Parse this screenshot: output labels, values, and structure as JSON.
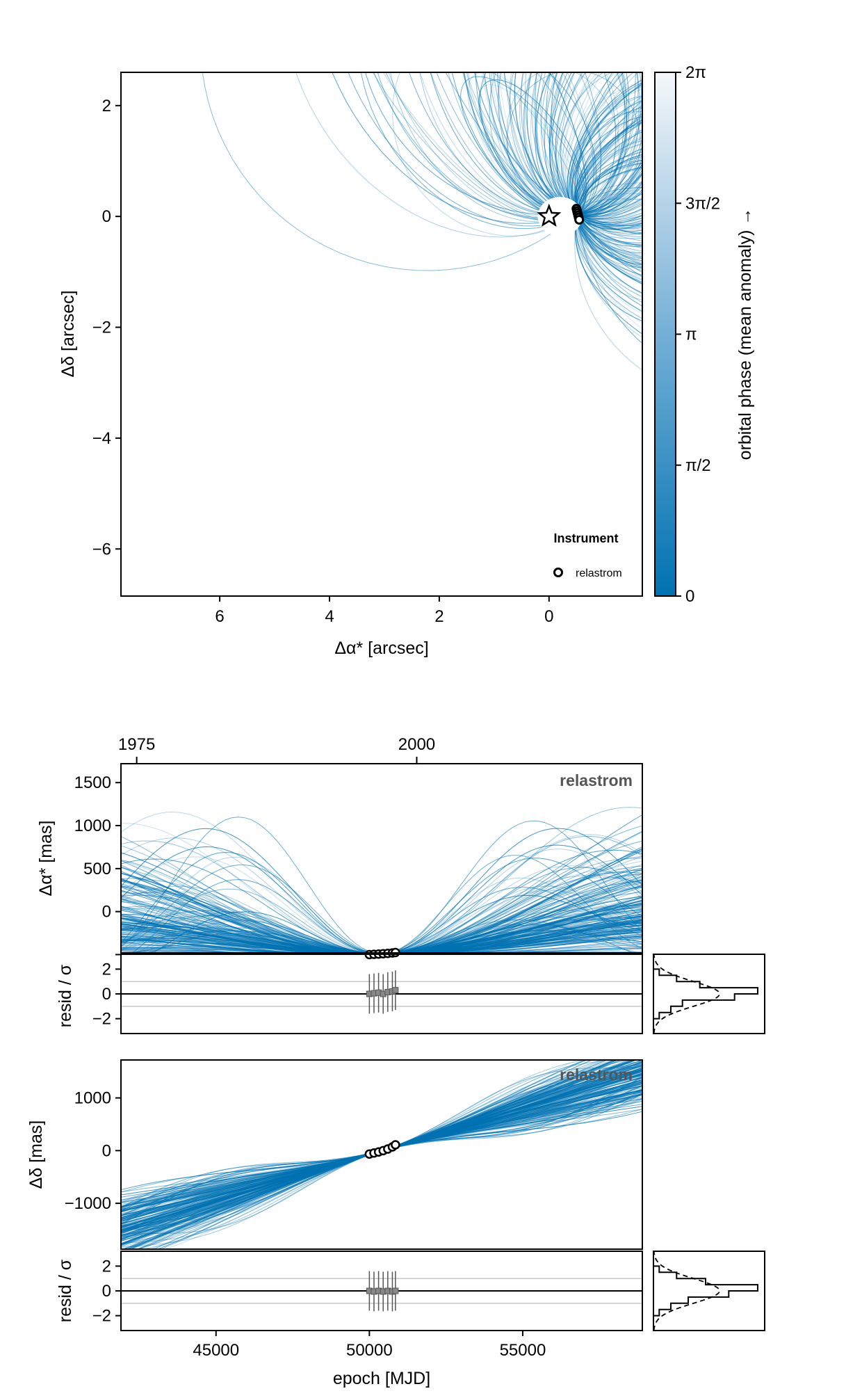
{
  "colors": {
    "orbit": "#0072B2",
    "frame": "#000000",
    "ref_line": "#c8c8c8",
    "marker_fill": "#ffffff",
    "error_bar": "#555555",
    "resid_marker": "#888888"
  },
  "chart_data": [
    {
      "id": "sky_orbit",
      "type": "line",
      "xlabel": "Δα* [arcsec]",
      "ylabel": "Δδ [arcsec]",
      "xlim": [
        7.8,
        -1.7
      ],
      "ylim": [
        -6.85,
        2.6
      ],
      "xticks": [
        {
          "v": 6,
          "label": "6"
        },
        {
          "v": 4,
          "label": "4"
        },
        {
          "v": 2,
          "label": "2"
        },
        {
          "v": 0,
          "label": "0"
        }
      ],
      "yticks": [
        {
          "v": 2,
          "label": "2"
        },
        {
          "v": 0,
          "label": "0"
        },
        {
          "v": -2,
          "label": "−2"
        },
        {
          "v": -4,
          "label": "−4"
        },
        {
          "v": -6,
          "label": "−6"
        }
      ],
      "star_marker": [
        0,
        0
      ],
      "legend": {
        "title": "Instrument",
        "label": "relastrom",
        "position": "bottom-right"
      },
      "observations": [
        [
          -0.5,
          0.14
        ],
        [
          -0.51,
          0.1
        ],
        [
          -0.52,
          0.06
        ],
        [
          -0.53,
          0.02
        ],
        [
          -0.54,
          -0.02
        ],
        [
          -0.55,
          -0.06
        ]
      ],
      "grid": false
    },
    {
      "id": "phase_colorbar",
      "type": "heatmap",
      "label": "orbital phase (mean anomaly) →",
      "range": [
        0,
        6.2832
      ],
      "ticks": [
        {
          "v": 0,
          "label": "0"
        },
        {
          "v": 1.5708,
          "label": "π/2"
        },
        {
          "v": 3.1416,
          "label": "π"
        },
        {
          "v": 4.7124,
          "label": "3π/2"
        },
        {
          "v": 6.2832,
          "label": "2π"
        }
      ]
    },
    {
      "id": "ra_vs_time",
      "type": "line",
      "instrument": "relastrom",
      "ylabel": "Δα* [mas]",
      "xlim": [
        41900,
        58900
      ],
      "ylim": [
        -480,
        1720
      ],
      "yticks": [
        {
          "v": 1500,
          "label": "1500"
        },
        {
          "v": 1000,
          "label": "1000"
        },
        {
          "v": 500,
          "label": "500"
        },
        {
          "v": 0,
          "label": "0"
        }
      ],
      "top_axis_ticks": [
        {
          "mjd": 42413,
          "label": "1975"
        },
        {
          "mjd": 51544,
          "label": "2000"
        }
      ],
      "observations": [
        {
          "mjd": 50000,
          "y": -500
        },
        {
          "mjd": 50150,
          "y": -497
        },
        {
          "mjd": 50300,
          "y": -494
        },
        {
          "mjd": 50450,
          "y": -490
        },
        {
          "mjd": 50600,
          "y": -486
        },
        {
          "mjd": 50750,
          "y": -481
        },
        {
          "mjd": 50850,
          "y": -476
        }
      ],
      "grid": false
    },
    {
      "id": "ra_resid",
      "type": "scatter",
      "ylabel": "resid / σ",
      "ylim": [
        -3.2,
        3.2
      ],
      "yticks": [
        {
          "v": 2,
          "label": "2"
        },
        {
          "v": 0,
          "label": "0"
        },
        {
          "v": -2,
          "label": "−2"
        }
      ],
      "ref_lines": [
        1,
        -1
      ],
      "residuals": [
        {
          "mjd": 50000,
          "r": 0.0,
          "err": 1.6
        },
        {
          "mjd": 50150,
          "r": 0.05,
          "err": 1.6
        },
        {
          "mjd": 50300,
          "r": 0.1,
          "err": 1.6
        },
        {
          "mjd": 50450,
          "r": 0.0,
          "err": 1.6
        },
        {
          "mjd": 50600,
          "r": 0.15,
          "err": 1.6
        },
        {
          "mjd": 50750,
          "r": 0.2,
          "err": 1.6
        },
        {
          "mjd": 50850,
          "r": 0.3,
          "err": 1.6
        }
      ]
    },
    {
      "id": "ra_resid_hist",
      "type": "bar",
      "bins": [
        -3.0,
        -2.5,
        -2.0,
        -1.5,
        -1.0,
        -0.5,
        0.0,
        0.5,
        1.0,
        1.5,
        2.0,
        2.5,
        3.0
      ],
      "counts": [
        0,
        0,
        1,
        3,
        5,
        14,
        18,
        8,
        4,
        1,
        0,
        0
      ]
    },
    {
      "id": "dec_vs_time",
      "type": "line",
      "instrument": "relastrom",
      "ylabel": "Δδ [mas]",
      "xlim": [
        41900,
        58900
      ],
      "ylim": [
        -1870,
        1720
      ],
      "yticks": [
        {
          "v": 1000,
          "label": "1000"
        },
        {
          "v": 0,
          "label": "0"
        },
        {
          "v": -1000,
          "label": "−1000"
        }
      ],
      "observations": [
        {
          "mjd": 50000,
          "y": -65
        },
        {
          "mjd": 50150,
          "y": -45
        },
        {
          "mjd": 50300,
          "y": -25
        },
        {
          "mjd": 50450,
          "y": 0
        },
        {
          "mjd": 50600,
          "y": 30
        },
        {
          "mjd": 50750,
          "y": 70
        },
        {
          "mjd": 50850,
          "y": 110
        }
      ],
      "grid": false
    },
    {
      "id": "dec_resid",
      "type": "scatter",
      "xlabel": "epoch [MJD]",
      "ylabel": "resid / σ",
      "xlim": [
        41900,
        58900
      ],
      "ylim": [
        -3.2,
        3.2
      ],
      "xticks": [
        {
          "v": 45000,
          "label": "45000"
        },
        {
          "v": 50000,
          "label": "50000"
        },
        {
          "v": 55000,
          "label": "55000"
        }
      ],
      "yticks": [
        {
          "v": 2,
          "label": "2"
        },
        {
          "v": 0,
          "label": "0"
        },
        {
          "v": -2,
          "label": "−2"
        }
      ],
      "ref_lines": [
        1,
        -1
      ],
      "residuals": [
        {
          "mjd": 50000,
          "r": 0.0,
          "err": 1.6
        },
        {
          "mjd": 50150,
          "r": -0.05,
          "err": 1.6
        },
        {
          "mjd": 50300,
          "r": 0.0,
          "err": 1.6
        },
        {
          "mjd": 50450,
          "r": -0.05,
          "err": 1.6
        },
        {
          "mjd": 50600,
          "r": 0.0,
          "err": 1.6
        },
        {
          "mjd": 50750,
          "r": -0.05,
          "err": 1.6
        },
        {
          "mjd": 50850,
          "r": 0.0,
          "err": 1.6
        }
      ]
    },
    {
      "id": "dec_resid_hist",
      "type": "bar",
      "bins": [
        -3.0,
        -2.5,
        -2.0,
        -1.5,
        -1.0,
        -0.5,
        0.0,
        0.5,
        1.0,
        1.5,
        2.0,
        2.5,
        3.0
      ],
      "counts": [
        0,
        0,
        1,
        3,
        6,
        13,
        18,
        9,
        4,
        1,
        0,
        0
      ]
    }
  ]
}
